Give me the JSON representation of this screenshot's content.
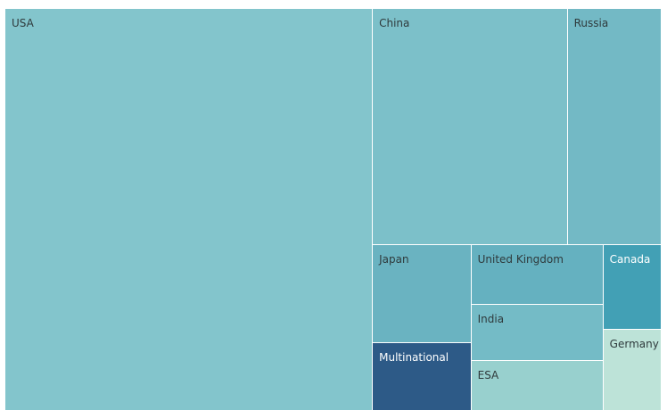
{
  "chart_data": {
    "type": "treemap",
    "items": [
      {
        "label": "USA",
        "value": 1840,
        "color": "#83c5cc",
        "text_color": "#2f3a3c"
      },
      {
        "label": "China",
        "value": 574,
        "color": "#7cc0c9",
        "text_color": "#2f3a3c"
      },
      {
        "label": "Russia",
        "value": 277,
        "color": "#73b9c5",
        "text_color": "#2f3a3c"
      },
      {
        "label": "Japan",
        "value": 120,
        "color": "#6ab3c1",
        "text_color": "#2f3a3c"
      },
      {
        "label": "United Kingdom",
        "value": 98,
        "color": "#65b1c0",
        "text_color": "#2f3a3c"
      },
      {
        "label": "India",
        "value": 92,
        "color": "#74bbc6",
        "text_color": "#2f3a3c"
      },
      {
        "label": "Multinational",
        "value": 83,
        "color": "#2d5a87",
        "text_color": "#ffffff"
      },
      {
        "label": "ESA",
        "value": 82,
        "color": "#98d0ce",
        "text_color": "#2f3a3c"
      },
      {
        "label": "Canada",
        "value": 61,
        "color": "#42a0b5",
        "text_color": "#ffffff"
      },
      {
        "label": "Germany",
        "value": 59,
        "color": "#bde3d8",
        "text_color": "#2f3a3c"
      }
    ]
  }
}
